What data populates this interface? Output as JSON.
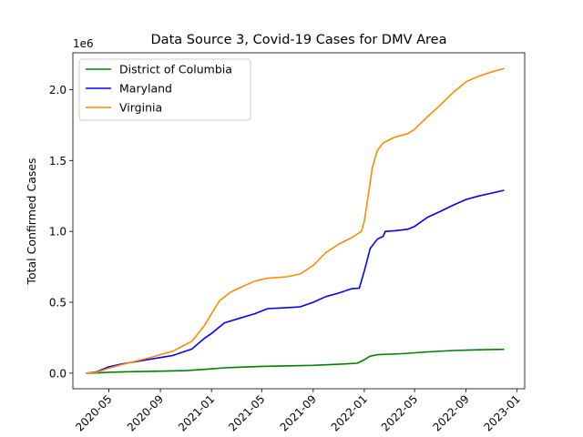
{
  "chart_data": {
    "type": "line",
    "title": "Data Source 3, Covid-19 Cases for DMV Area",
    "xlabel": "",
    "ylabel": "Total Confirmed Cases",
    "y_offset_label": "1e6",
    "xlim": [
      "2020-02-05",
      "2023-01-19"
    ],
    "ylim": [
      -0.11,
      2.26
    ],
    "x_ticks": [
      {
        "date": "2020-05-01",
        "label": "2020-05"
      },
      {
        "date": "2020-09-01",
        "label": "2020-09"
      },
      {
        "date": "2021-01-01",
        "label": "2021-01"
      },
      {
        "date": "2021-05-01",
        "label": "2021-05"
      },
      {
        "date": "2021-09-01",
        "label": "2021-09"
      },
      {
        "date": "2022-01-01",
        "label": "2022-01"
      },
      {
        "date": "2022-05-01",
        "label": "2022-05"
      },
      {
        "date": "2022-09-01",
        "label": "2022-09"
      },
      {
        "date": "2023-01-01",
        "label": "2023-01"
      }
    ],
    "y_ticks": [
      {
        "value": 0.0,
        "label": "0.0"
      },
      {
        "value": 0.5,
        "label": "0.5"
      },
      {
        "value": 1.0,
        "label": "1.0"
      },
      {
        "value": 1.5,
        "label": "1.5"
      },
      {
        "value": 2.0,
        "label": "2.0"
      }
    ],
    "legend_position": "top-left",
    "grid": false,
    "series": [
      {
        "name": "District of Columbia",
        "color": "#008000",
        "points": [
          [
            "2020-03-08",
            0.0
          ],
          [
            "2020-04-01",
            0.001
          ],
          [
            "2020-05-01",
            0.006
          ],
          [
            "2020-07-01",
            0.011
          ],
          [
            "2020-09-01",
            0.014
          ],
          [
            "2020-11-01",
            0.018
          ],
          [
            "2021-01-01",
            0.03
          ],
          [
            "2021-02-01",
            0.038
          ],
          [
            "2021-05-01",
            0.048
          ],
          [
            "2021-09-01",
            0.055
          ],
          [
            "2021-11-01",
            0.063
          ],
          [
            "2021-12-15",
            0.07
          ],
          [
            "2022-01-01",
            0.095
          ],
          [
            "2022-01-15",
            0.12
          ],
          [
            "2022-02-01",
            0.13
          ],
          [
            "2022-04-01",
            0.137
          ],
          [
            "2022-06-01",
            0.15
          ],
          [
            "2022-08-01",
            0.16
          ],
          [
            "2022-10-01",
            0.165
          ],
          [
            "2022-12-01",
            0.168
          ]
        ]
      },
      {
        "name": "Maryland",
        "color": "#0000ff",
        "points": [
          [
            "2020-03-08",
            0.0
          ],
          [
            "2020-04-01",
            0.008
          ],
          [
            "2020-05-01",
            0.045
          ],
          [
            "2020-06-01",
            0.065
          ],
          [
            "2020-08-01",
            0.095
          ],
          [
            "2020-10-01",
            0.125
          ],
          [
            "2020-11-15",
            0.17
          ],
          [
            "2020-12-15",
            0.245
          ],
          [
            "2021-01-01",
            0.28
          ],
          [
            "2021-02-01",
            0.355
          ],
          [
            "2021-03-01",
            0.38
          ],
          [
            "2021-04-15",
            0.42
          ],
          [
            "2021-05-15",
            0.455
          ],
          [
            "2021-07-01",
            0.462
          ],
          [
            "2021-08-01",
            0.468
          ],
          [
            "2021-09-01",
            0.5
          ],
          [
            "2021-10-01",
            0.54
          ],
          [
            "2021-11-01",
            0.565
          ],
          [
            "2021-12-01",
            0.595
          ],
          [
            "2021-12-20",
            0.6
          ],
          [
            "2022-01-01",
            0.72
          ],
          [
            "2022-01-15",
            0.88
          ],
          [
            "2022-02-01",
            0.945
          ],
          [
            "2022-02-15",
            0.965
          ],
          [
            "2022-02-20",
            1.0
          ],
          [
            "2022-03-15",
            1.005
          ],
          [
            "2022-04-15",
            1.015
          ],
          [
            "2022-05-01",
            1.035
          ],
          [
            "2022-06-01",
            1.1
          ],
          [
            "2022-07-01",
            1.14
          ],
          [
            "2022-08-01",
            1.185
          ],
          [
            "2022-09-01",
            1.225
          ],
          [
            "2022-10-01",
            1.25
          ],
          [
            "2022-11-01",
            1.27
          ],
          [
            "2022-12-01",
            1.29
          ]
        ]
      },
      {
        "name": "Virginia",
        "color": "#ff8c00",
        "points": [
          [
            "2020-03-08",
            0.0
          ],
          [
            "2020-04-01",
            0.005
          ],
          [
            "2020-05-01",
            0.035
          ],
          [
            "2020-06-01",
            0.06
          ],
          [
            "2020-08-01",
            0.105
          ],
          [
            "2020-10-01",
            0.155
          ],
          [
            "2020-11-15",
            0.225
          ],
          [
            "2020-12-15",
            0.335
          ],
          [
            "2021-01-01",
            0.42
          ],
          [
            "2021-01-20",
            0.51
          ],
          [
            "2021-02-15",
            0.57
          ],
          [
            "2021-03-15",
            0.61
          ],
          [
            "2021-04-15",
            0.65
          ],
          [
            "2021-05-15",
            0.67
          ],
          [
            "2021-07-01",
            0.68
          ],
          [
            "2021-08-01",
            0.7
          ],
          [
            "2021-09-01",
            0.76
          ],
          [
            "2021-10-01",
            0.85
          ],
          [
            "2021-11-01",
            0.91
          ],
          [
            "2021-12-01",
            0.955
          ],
          [
            "2021-12-25",
            1.0
          ],
          [
            "2022-01-01",
            1.07
          ],
          [
            "2022-01-10",
            1.25
          ],
          [
            "2022-01-20",
            1.45
          ],
          [
            "2022-02-01",
            1.57
          ],
          [
            "2022-02-15",
            1.625
          ],
          [
            "2022-03-15",
            1.665
          ],
          [
            "2022-04-15",
            1.69
          ],
          [
            "2022-05-01",
            1.72
          ],
          [
            "2022-06-01",
            1.81
          ],
          [
            "2022-07-01",
            1.89
          ],
          [
            "2022-08-01",
            1.98
          ],
          [
            "2022-09-01",
            2.055
          ],
          [
            "2022-10-01",
            2.095
          ],
          [
            "2022-11-01",
            2.125
          ],
          [
            "2022-12-01",
            2.15
          ]
        ]
      }
    ]
  }
}
